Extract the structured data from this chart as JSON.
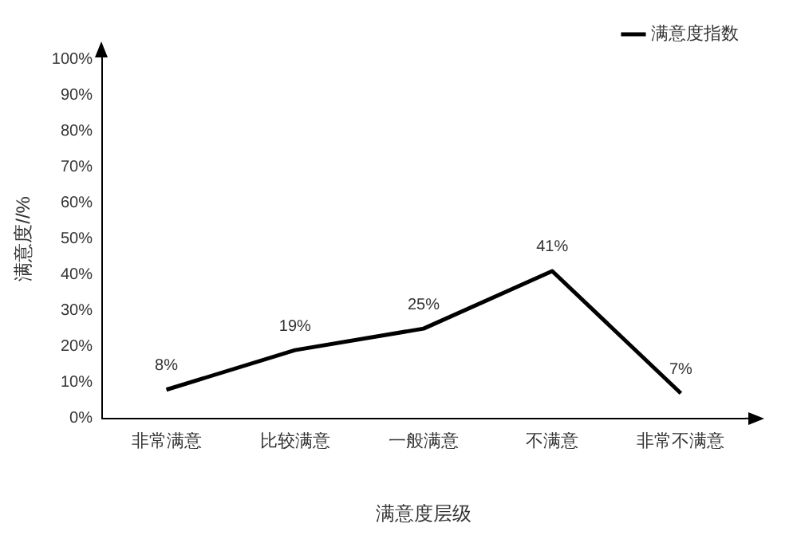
{
  "chart_data": {
    "type": "line",
    "xlabel": "满意度层级",
    "ylabel": "满意度//%",
    "categories": [
      "非常满意",
      "比较满意",
      "一般满意",
      "不满意",
      "非常不满意"
    ],
    "series": [
      {
        "name": "满意度指数",
        "color": "#000000",
        "values": [
          8,
          19,
          25,
          41,
          7
        ],
        "value_labels": [
          "8%",
          "19%",
          "25%",
          "41%",
          "7%"
        ]
      }
    ],
    "ylim": [
      0,
      100
    ],
    "yticks": [
      {
        "value": 0,
        "label": "0%"
      },
      {
        "value": 10,
        "label": "10%"
      },
      {
        "value": 20,
        "label": "20%"
      },
      {
        "value": 30,
        "label": "30%"
      },
      {
        "value": 40,
        "label": "40%"
      },
      {
        "value": 50,
        "label": "50%"
      },
      {
        "value": 60,
        "label": "60%"
      },
      {
        "value": 70,
        "label": "70%"
      },
      {
        "value": 80,
        "label": "80%"
      },
      {
        "value": 90,
        "label": "90%"
      },
      {
        "value": 100,
        "label": "100%"
      }
    ],
    "grid": false,
    "legend": "top right",
    "marker": "none",
    "line_style": "solid"
  }
}
